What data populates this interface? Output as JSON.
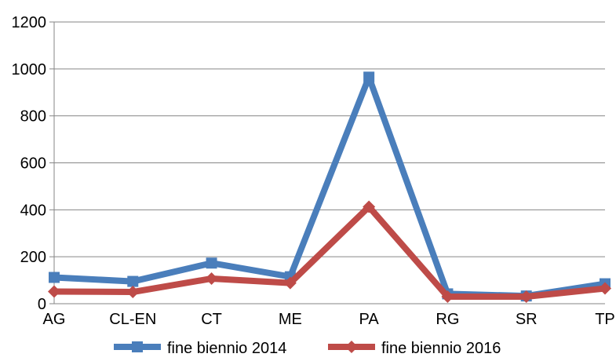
{
  "chart_data": {
    "type": "line",
    "categories": [
      "AG",
      "CL-EN",
      "CT",
      "ME",
      "PA",
      "RG",
      "SR",
      "TP"
    ],
    "series": [
      {
        "name": "fine biennio 2014",
        "color": "#4a7ebb",
        "marker": "square",
        "values": [
          112,
          95,
          173,
          115,
          965,
          42,
          33,
          85
        ]
      },
      {
        "name": "fine biennio 2016",
        "color": "#be4b48",
        "marker": "diamond",
        "values": [
          52,
          50,
          107,
          88,
          413,
          30,
          30,
          65
        ]
      }
    ],
    "yticks": [
      0,
      200,
      400,
      600,
      800,
      1000,
      1200
    ],
    "ylim": [
      0,
      1200
    ],
    "grid": true,
    "legend_position": "bottom",
    "title": "",
    "xlabel": "",
    "ylabel": ""
  }
}
